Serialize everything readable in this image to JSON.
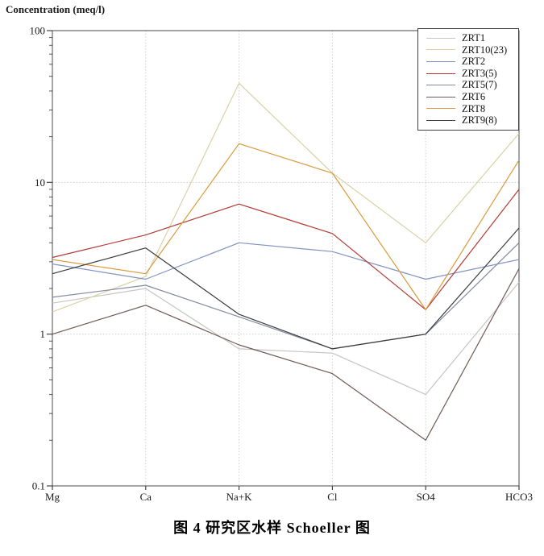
{
  "figure": {
    "axis_title": "Concentration (meq/l)",
    "caption": "图 4  研究区水样 Schoeller 图"
  },
  "chart_data": {
    "type": "line",
    "title": "图 4 研究区水样 Schoeller 图",
    "ylabel": "Concentration (meq/l)",
    "xlabel": "",
    "yscale": "log",
    "ylim": [
      0.1,
      100
    ],
    "ytick_labels": [
      "100",
      "10",
      "1",
      "0.1"
    ],
    "ytick_values": [
      100,
      10,
      1,
      0.1
    ],
    "grid": "dotted horizontal at 1 and 10, dotted vertical at interior categories",
    "legend_position": "top-right-inside",
    "categories": [
      "Mg",
      "Ca",
      "Na+K",
      "Cl",
      "SO4",
      "HCO3"
    ],
    "series": [
      {
        "name": "ZRT1",
        "color": "#c7c4c1",
        "values": [
          1.6,
          2.0,
          0.8,
          0.75,
          0.4,
          2.2
        ]
      },
      {
        "name": "ZRT10(23)",
        "color": "#d8d2a4",
        "values": [
          1.4,
          2.4,
          45,
          11.5,
          4.0,
          21
        ]
      },
      {
        "name": "ZRT2",
        "color": "#8194c1",
        "values": [
          2.9,
          2.3,
          4.0,
          3.5,
          2.3,
          3.1
        ]
      },
      {
        "name": "ZRT3(5)",
        "color": "#b23a33",
        "values": [
          3.2,
          4.5,
          7.2,
          4.6,
          1.45,
          9.0
        ]
      },
      {
        "name": "ZRT5(7)",
        "color": "#848ba0",
        "values": [
          1.75,
          2.1,
          1.3,
          0.8,
          1.0,
          4.0
        ]
      },
      {
        "name": "ZRT6",
        "color": "#6f5a55",
        "values": [
          1.0,
          1.55,
          0.85,
          0.55,
          0.2,
          2.7
        ]
      },
      {
        "name": "ZRT8",
        "color": "#d89a3d",
        "values": [
          3.1,
          2.5,
          18,
          11.5,
          1.45,
          14
        ]
      },
      {
        "name": "ZRT9(8)",
        "color": "#3b3b3d",
        "values": [
          2.5,
          3.7,
          1.35,
          0.8,
          1.0,
          5.0
        ]
      }
    ]
  }
}
